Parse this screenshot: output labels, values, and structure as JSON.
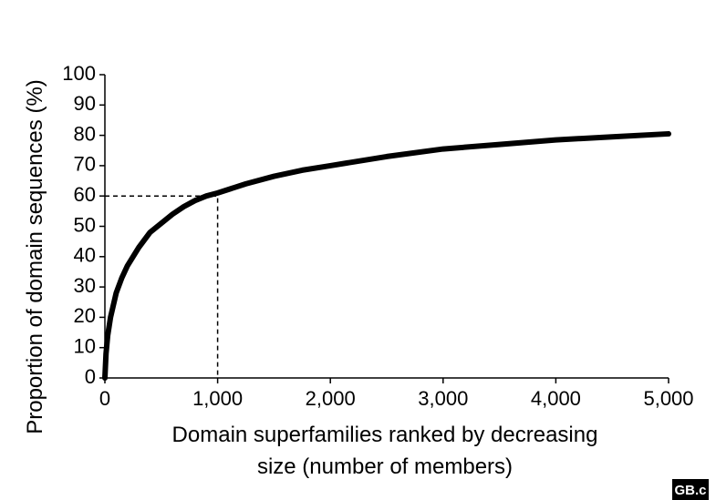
{
  "chart_data": {
    "type": "line",
    "y_label": "Proportion of domain sequences (%)",
    "x_label_lines": [
      "Domain superfamilies ranked by decreasing",
      "size (number of members)"
    ],
    "logo": "GB.c",
    "x": [
      0,
      10,
      25,
      50,
      100,
      150,
      200,
      300,
      400,
      500,
      600,
      700,
      800,
      900,
      1000,
      1250,
      1500,
      1750,
      2000,
      2500,
      3000,
      3500,
      4000,
      4500,
      5000
    ],
    "series": [
      {
        "color": "#000000",
        "values": [
          0,
          8,
          14,
          20,
          28,
          33,
          37,
          43,
          48,
          51,
          54,
          56.5,
          58.5,
          60,
          61,
          64,
          66.5,
          68.5,
          70,
          73,
          75.5,
          77,
          78.5,
          79.5,
          80.5
        ]
      }
    ],
    "reference": {
      "x": 1000,
      "y": 60
    },
    "xlim": [
      0,
      5000
    ],
    "xticks": [
      0,
      {
        "value": 1000,
        "label": "1,000"
      },
      {
        "value": 2000,
        "label": "2,000"
      },
      {
        "value": 3000,
        "label": "3,000"
      },
      {
        "value": 4000,
        "label": "4,000"
      },
      {
        "value": 5000,
        "label": "5,000"
      }
    ],
    "ylim": [
      0,
      100
    ],
    "yticks": [
      0,
      10,
      20,
      30,
      40,
      50,
      60,
      70,
      80,
      90,
      100
    ]
  }
}
